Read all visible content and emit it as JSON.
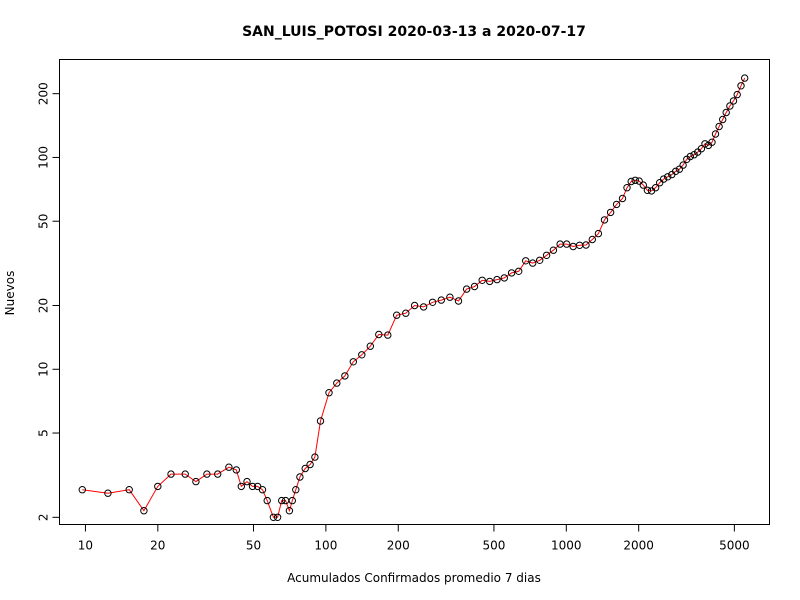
{
  "chart_data": {
    "type": "line",
    "title": "SAN_LUIS_POTOSI 2020-03-13 a 2020-07-17",
    "xlabel": "Acumulados Confirmados promedio  7  dias",
    "ylabel": "Nuevos",
    "x_scale": "log",
    "y_scale": "log",
    "xlim": [
      7.8,
      7000
    ],
    "ylim": [
      1.85,
      290
    ],
    "x_ticks": [
      10,
      20,
      50,
      100,
      200,
      500,
      1000,
      2000,
      5000
    ],
    "x_tick_labels": [
      "10",
      "20",
      "50",
      "100",
      "200",
      "500",
      "1000",
      "2000",
      "5000"
    ],
    "y_ticks": [
      2,
      5,
      10,
      20,
      50,
      100,
      200
    ],
    "y_tick_labels": [
      "2",
      "5",
      "10",
      "20",
      "50",
      "100",
      "200"
    ],
    "grid": false,
    "legend": "none",
    "colors": {
      "line": "#ff0000",
      "points": "#000000"
    },
    "series": [
      {
        "x": [
          9.7,
          12.4,
          15.2,
          17.5,
          20.0,
          22.7,
          26.0,
          28.8,
          32.0,
          35.5,
          39.5,
          42.4,
          44.5,
          47.0,
          49.5,
          52.0,
          54.5,
          57.0,
          60.5,
          63.0,
          65.5,
          68.0,
          70.5,
          72.5,
          75.0,
          78.0,
          82.0,
          86.0,
          90.0,
          95.0,
          103.0,
          111.0,
          120.0,
          130.0,
          141.0,
          153.0,
          166.0,
          181.0,
          197.0,
          215.0,
          234.0,
          255.0,
          278.0,
          302.0,
          328.0,
          356.0,
          385.0,
          415.0,
          447.0,
          480.0,
          515.0,
          552.0,
          592.0,
          634.0,
          678.0,
          725.0,
          775.0,
          828.0,
          884.0,
          942.0,
          1004.0,
          1068.0,
          1136.0,
          1207.0,
          1282.0,
          1360.0,
          1442.0,
          1528.0,
          1618.0,
          1712.0,
          1788.0,
          1862.0,
          1935.0,
          2010.0,
          2090.0,
          2175.0,
          2262.0,
          2352.0,
          2445.0,
          2540.0,
          2640.0,
          2745.0,
          2850.0,
          2955.0,
          3060.0,
          3170.0,
          3280.0,
          3400.0,
          3520.0,
          3645.0,
          3775.0,
          3900.0,
          4035.0,
          4175.0,
          4320.0,
          4470.0,
          4625.0,
          4790.0,
          4960.0,
          5140.0,
          5330.0,
          5520.0
        ],
        "y": [
          2.7,
          2.6,
          2.7,
          2.15,
          2.8,
          3.2,
          3.2,
          2.95,
          3.2,
          3.2,
          3.45,
          3.35,
          2.8,
          2.95,
          2.8,
          2.8,
          2.7,
          2.4,
          2.0,
          2.0,
          2.4,
          2.4,
          2.15,
          2.4,
          2.7,
          3.1,
          3.4,
          3.55,
          3.85,
          5.7,
          7.75,
          8.6,
          9.3,
          10.85,
          11.7,
          12.85,
          14.6,
          14.5,
          18.0,
          18.4,
          20.0,
          19.7,
          20.7,
          21.2,
          21.9,
          21.0,
          23.9,
          24.6,
          26.3,
          26.0,
          26.5,
          27.0,
          28.5,
          29.0,
          32.5,
          31.7,
          32.7,
          34.5,
          36.5,
          39.0,
          39.0,
          38.0,
          38.5,
          38.6,
          41.0,
          43.7,
          50.7,
          55.0,
          60.0,
          64.0,
          72.0,
          77.0,
          78.0,
          77.3,
          74.0,
          70.0,
          69.5,
          72.0,
          76.0,
          79.0,
          81.0,
          83.0,
          86.0,
          88.0,
          92.0,
          98.0,
          101.0,
          103.0,
          106.0,
          110.0,
          116.0,
          114.0,
          118.0,
          129.0,
          140.0,
          151.0,
          163.0,
          175.0,
          185.0,
          198.0,
          218.0,
          237.0
        ]
      }
    ]
  }
}
